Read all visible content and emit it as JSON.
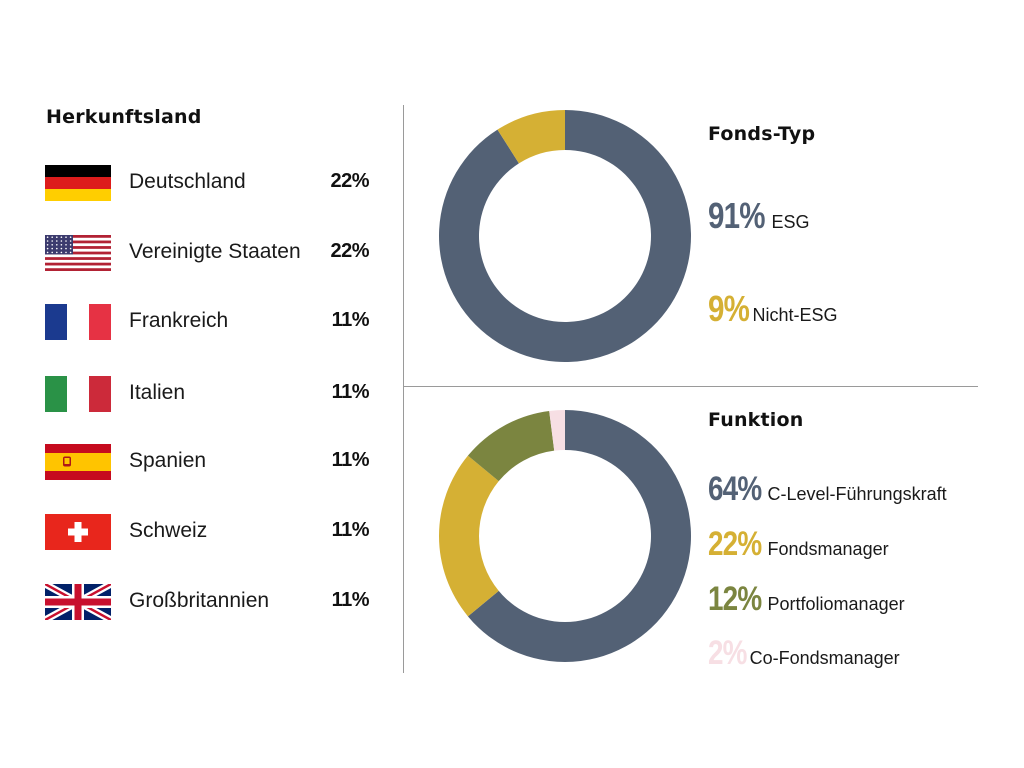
{
  "colors": {
    "slate": "#536175",
    "mustard": "#d5b034",
    "olive": "#7b8540",
    "pink": "#f7dfe4",
    "divider": "#9a9a9a"
  },
  "left_panel": {
    "title": "Herkunftsland",
    "countries": [
      {
        "name": "Deutschland",
        "pct": "22%",
        "flag": "germany-flag-icon"
      },
      {
        "name": "Vereinigte Staaten",
        "pct": "22%",
        "flag": "usa-flag-icon"
      },
      {
        "name": "Frankreich",
        "pct": "11%",
        "flag": "france-flag-icon"
      },
      {
        "name": "Italien",
        "pct": "11%",
        "flag": "italy-flag-icon"
      },
      {
        "name": "Spanien",
        "pct": "11%",
        "flag": "spain-flag-icon"
      },
      {
        "name": "Schweiz",
        "pct": "11%",
        "flag": "switzerland-flag-icon"
      },
      {
        "name": "Großbritannien",
        "pct": "11%",
        "flag": "uk-flag-icon"
      }
    ]
  },
  "chart_data": [
    {
      "type": "pie",
      "title": "Fonds-Typ",
      "slices": [
        {
          "label": "ESG",
          "display": "91%",
          "value": 91,
          "color": "#536175"
        },
        {
          "label": "Nicht-ESG",
          "display": "9%",
          "value": 9,
          "color": "#d5b034"
        }
      ]
    },
    {
      "type": "pie",
      "title": "Funktion",
      "slices": [
        {
          "label": "C-Level-Führungskraft",
          "display": "64%",
          "value": 64,
          "color": "#536175"
        },
        {
          "label": "Fondsmanager",
          "display": "22%",
          "value": 22,
          "color": "#d5b034"
        },
        {
          "label": "Portfoliomanager",
          "display": "12%",
          "value": 12,
          "color": "#7b8540"
        },
        {
          "label": "Co-Fondsmanager",
          "display": "2%",
          "value": 2,
          "color": "#f7dfe4"
        }
      ]
    }
  ]
}
